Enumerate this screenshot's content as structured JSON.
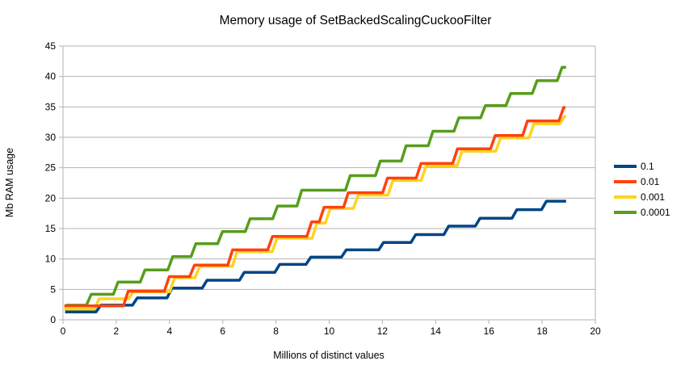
{
  "chart_data": {
    "type": "line",
    "variant": "step",
    "title": "Memory usage of SetBackedScalingCuckooFilter",
    "xlabel": "Millions of distinct values",
    "ylabel": "Mb RAM usage",
    "xlim": [
      0,
      20
    ],
    "ylim": [
      0,
      45
    ],
    "xticks": [
      0,
      2,
      4,
      6,
      8,
      10,
      12,
      14,
      16,
      18,
      20
    ],
    "yticks": [
      0,
      5,
      10,
      15,
      20,
      25,
      30,
      35,
      40,
      45
    ],
    "grid": "horizontal",
    "grid_color": "#b3b3b3",
    "axis_color": "#b3b3b3",
    "text_color": "#000000",
    "legend_position": "right",
    "z_order": [
      "0.1",
      "0.0001",
      "0.001",
      "0.01"
    ],
    "series": [
      {
        "name": "0.1",
        "color": "#004586",
        "x_start": 0.08,
        "x_end": 18.9,
        "levels": [
          1.3,
          2.4,
          3.6,
          5.2,
          6.5,
          7.8,
          9.1,
          10.3,
          11.5,
          12.7,
          14.0,
          15.4,
          16.7,
          18.1,
          19.5
        ],
        "step_x": [
          1.33,
          2.7,
          4.0,
          5.32,
          6.72,
          8.05,
          9.22,
          10.55,
          11.95,
          13.16,
          14.4,
          15.58,
          16.96,
          18.07
        ]
      },
      {
        "name": "0.01",
        "color": "#ff420e",
        "x_start": 0.05,
        "x_end": 18.88,
        "levels": [
          2.3,
          4.7,
          7.1,
          9.0,
          11.5,
          13.7,
          16.1,
          18.5,
          20.9,
          23.3,
          25.7,
          28.1,
          30.3,
          32.7,
          34.9
        ],
        "step_x": [
          2.36,
          3.9,
          4.85,
          6.28,
          7.78,
          9.25,
          9.72,
          10.63,
          12.1,
          13.36,
          14.73,
          16.15,
          17.36,
          18.72
        ]
      },
      {
        "name": "0.001",
        "color": "#ffd320",
        "x_start": 0.05,
        "x_end": 18.9,
        "levels": [
          1.75,
          3.45,
          4.6,
          6.9,
          8.8,
          11.2,
          13.4,
          15.9,
          18.3,
          20.5,
          22.9,
          25.3,
          27.7,
          29.9,
          32.2,
          33.4
        ],
        "step_x": [
          1.27,
          2.55,
          4.1,
          5.05,
          6.45,
          7.95,
          9.45,
          9.95,
          11.0,
          12.3,
          13.55,
          14.9,
          16.35,
          17.6,
          18.75
        ]
      },
      {
        "name": "0.0001",
        "color": "#579d1c",
        "x_start": 0.1,
        "x_end": 18.9,
        "levels": [
          2.4,
          4.2,
          6.2,
          8.2,
          10.4,
          12.5,
          14.5,
          16.6,
          18.7,
          21.3,
          23.7,
          26.1,
          28.6,
          31.0,
          33.2,
          35.2,
          37.2,
          39.3,
          41.5
        ],
        "step_x": [
          0.97,
          1.98,
          2.99,
          4.03,
          4.9,
          5.9,
          6.94,
          7.97,
          8.88,
          10.7,
          11.83,
          12.8,
          13.81,
          14.78,
          15.78,
          16.73,
          17.72,
          18.66
        ]
      }
    ]
  }
}
